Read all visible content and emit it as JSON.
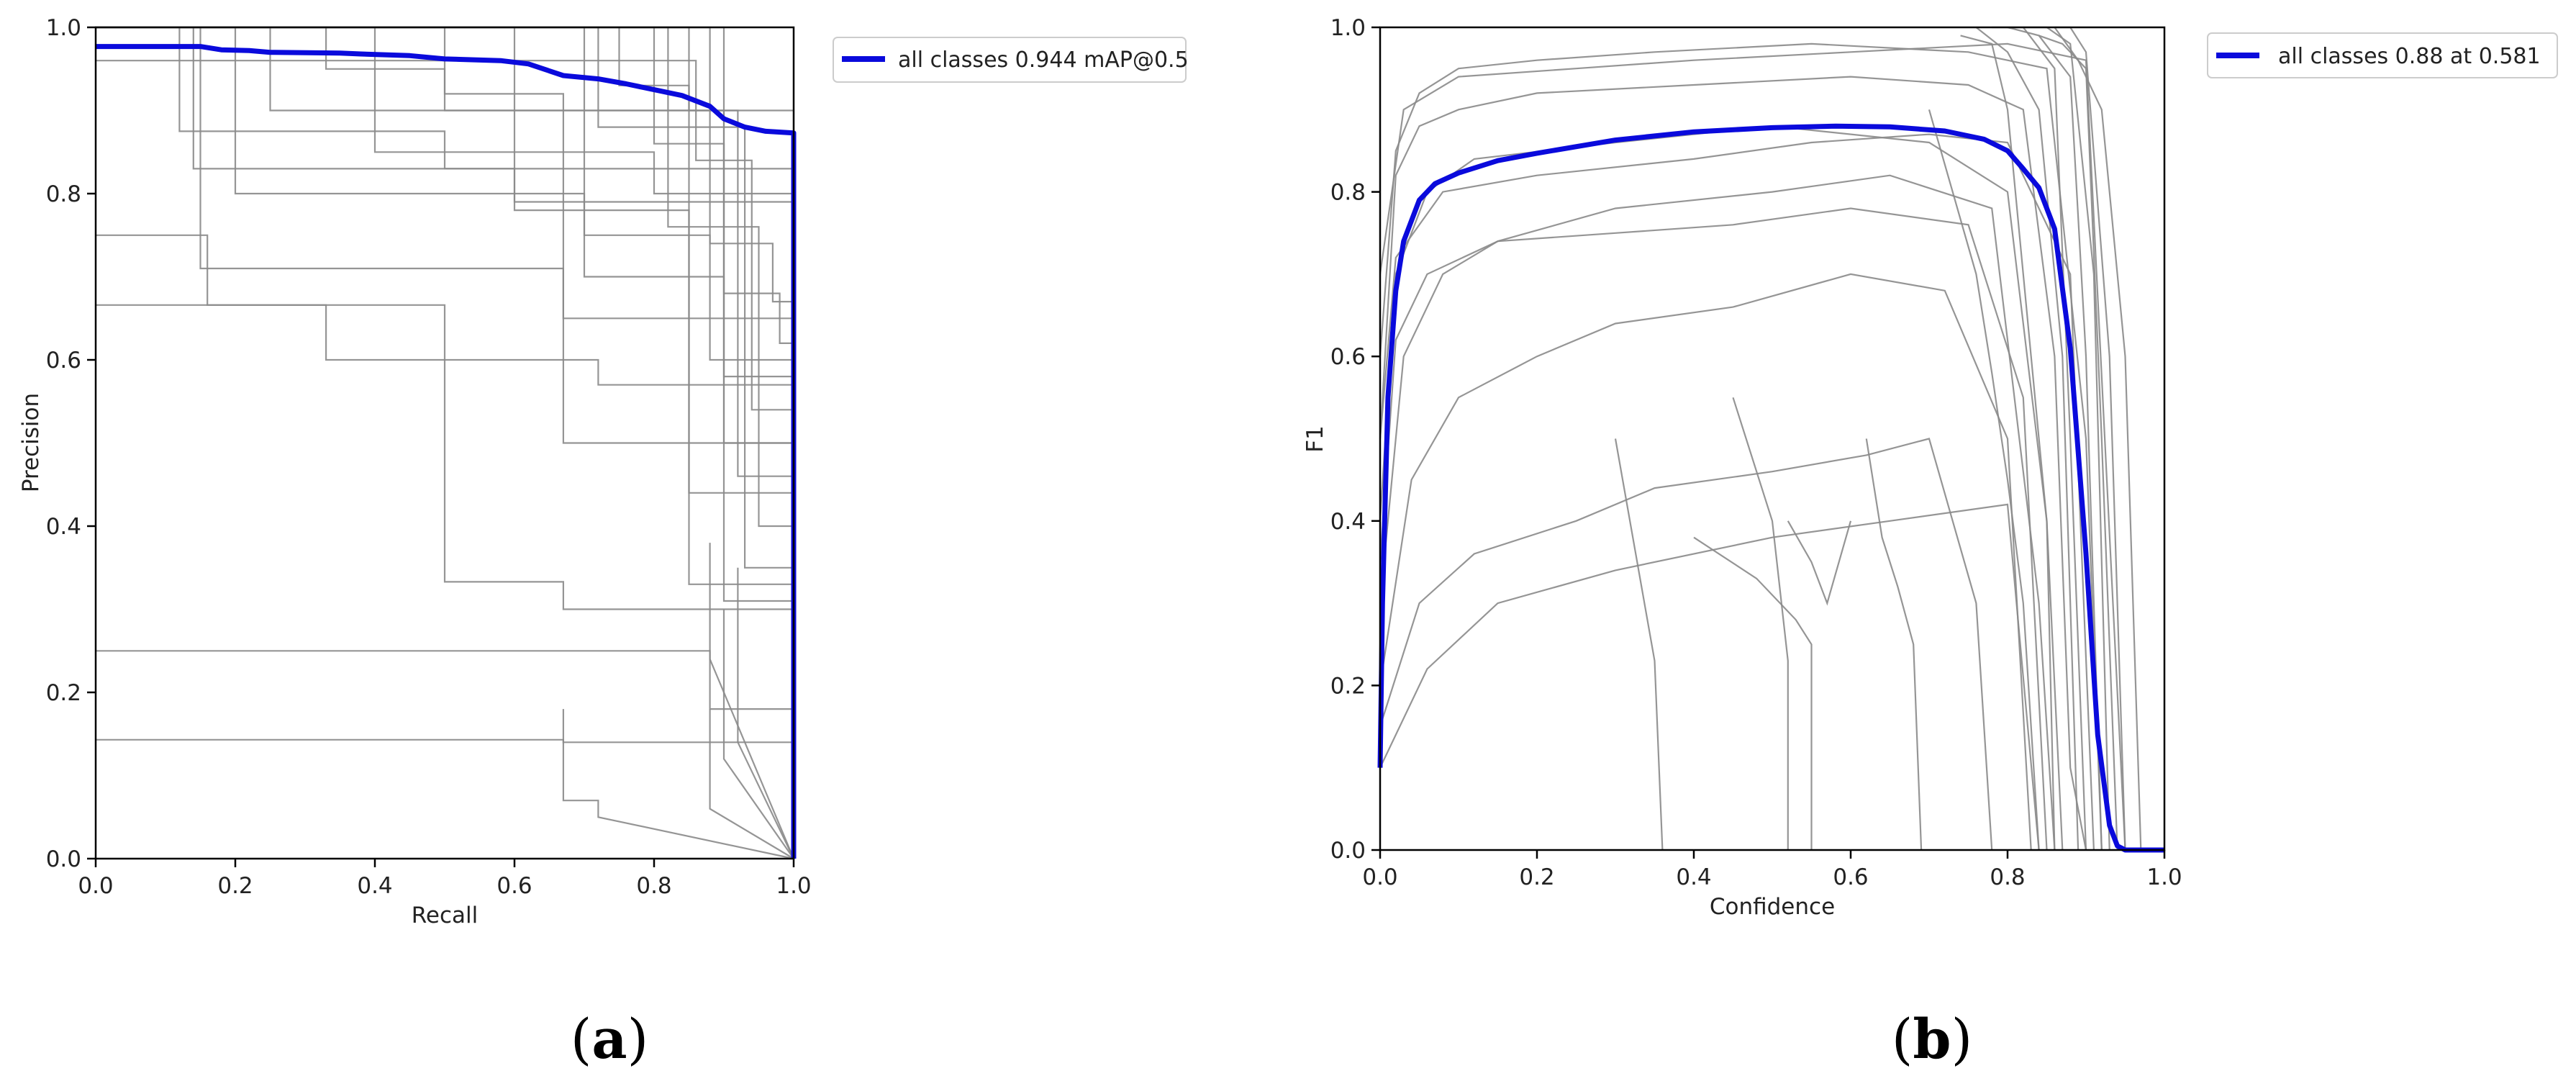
{
  "colors": {
    "all_classes": "#0a0adc",
    "per_class": "#8a8a8a",
    "axes": "#000000"
  },
  "chart_data": [
    {
      "type": "line",
      "panel_label": "a",
      "xlabel": "Recall",
      "ylabel": "Precision",
      "xlim": [
        0,
        1
      ],
      "ylim": [
        0,
        1
      ],
      "xticks": [
        "0.0",
        "0.2",
        "0.4",
        "0.6",
        "0.8",
        "1.0"
      ],
      "yticks": [
        "0.0",
        "0.2",
        "0.4",
        "0.6",
        "0.8",
        "1.0"
      ],
      "legend": {
        "position": "outside-top-right",
        "entries": [
          "all classes 0.944 mAP@0.5"
        ]
      },
      "grid": false,
      "series": [
        {
          "name": "all classes 0.944 mAP@0.5",
          "x": [
            0,
            0.15,
            0.18,
            0.22,
            0.25,
            0.35,
            0.38,
            0.45,
            0.5,
            0.58,
            0.62,
            0.67,
            0.72,
            0.76,
            0.8,
            0.84,
            0.88,
            0.9,
            0.93,
            0.96,
            1.0,
            1.0
          ],
          "y": [
            0.977,
            0.977,
            0.973,
            0.972,
            0.97,
            0.969,
            0.968,
            0.966,
            0.962,
            0.96,
            0.956,
            0.942,
            0.938,
            0.932,
            0.925,
            0.918,
            0.905,
            0.89,
            0.88,
            0.875,
            0.873,
            0.0
          ]
        }
      ],
      "background_series": [
        {
          "x": [
            0,
            0.12,
            0.12,
            0.5,
            0.5,
            1,
            1
          ],
          "y": [
            1,
            1,
            0.875,
            0.875,
            0.83,
            0.83,
            0
          ]
        },
        {
          "x": [
            0,
            0.14,
            0.14,
            0.6,
            0.6,
            1,
            1
          ],
          "y": [
            1,
            1,
            0.83,
            0.83,
            0.79,
            0.79,
            0
          ]
        },
        {
          "x": [
            0,
            0.15,
            0.15,
            0.67,
            0.67,
            1,
            1
          ],
          "y": [
            1,
            1,
            0.71,
            0.71,
            0.65,
            0.65,
            0
          ]
        },
        {
          "x": [
            0,
            0.16,
            0.16,
            0.33,
            0.33,
            0.72,
            0.72,
            1,
            1
          ],
          "y": [
            0.75,
            0.75,
            0.666,
            0.666,
            0.6,
            0.6,
            0.57,
            0.57,
            0
          ]
        },
        {
          "x": [
            0,
            0.2,
            0.2,
            0.7,
            0.7,
            0.88,
            0.88,
            1,
            1
          ],
          "y": [
            1,
            1,
            0.8,
            0.8,
            0.75,
            0.75,
            0.6,
            0.6,
            0
          ]
        },
        {
          "x": [
            0,
            0.25,
            0.25,
            0.9,
            0.9,
            1,
            1
          ],
          "y": [
            1,
            1,
            0.9,
            0.9,
            0.58,
            0.58,
            0
          ]
        },
        {
          "x": [
            0,
            0.33,
            0.33,
            0.5,
            0.5,
            1,
            1
          ],
          "y": [
            1,
            1,
            0.95,
            0.95,
            0.9,
            0.9,
            0
          ]
        },
        {
          "x": [
            0,
            0.4,
            0.4,
            0.8,
            0.8,
            1,
            1
          ],
          "y": [
            1,
            1,
            0.85,
            0.85,
            0.8,
            0.8,
            0
          ]
        },
        {
          "x": [
            0,
            0.5,
            0.5,
            0.67,
            0.67,
            1,
            1
          ],
          "y": [
            1,
            1,
            0.92,
            0.92,
            0.5,
            0.5,
            0
          ]
        },
        {
          "x": [
            0,
            0.6,
            0.6,
            0.85,
            0.85,
            1,
            1
          ],
          "y": [
            1,
            1,
            0.78,
            0.78,
            0.44,
            0.44,
            0
          ]
        },
        {
          "x": [
            0,
            0.5,
            0.5,
            0.67,
            0.67,
            1,
            1
          ],
          "y": [
            0.666,
            0.666,
            0.333,
            0.333,
            0.3,
            0.3,
            0
          ]
        },
        {
          "x": [
            0,
            0.67,
            0.67,
            0.88,
            0.88,
            1,
            1
          ],
          "y": [
            0.25,
            0.25,
            0.25,
            0.25,
            0.18,
            0.18,
            0
          ]
        },
        {
          "x": [
            0,
            0.67,
            0.67,
            1,
            1
          ],
          "y": [
            0.143,
            0.143,
            0.14,
            0.14,
            0
          ]
        },
        {
          "x": [
            0,
            0.7,
            0.7,
            0.9,
            0.9,
            1,
            1
          ],
          "y": [
            1,
            1,
            0.7,
            0.7,
            0.5,
            0.5,
            0
          ]
        },
        {
          "x": [
            0,
            0.72,
            0.72,
            0.93,
            0.93,
            1,
            1
          ],
          "y": [
            1,
            1,
            0.88,
            0.88,
            0.35,
            0.35,
            0
          ]
        },
        {
          "x": [
            0,
            0.75,
            0.75,
            0.85,
            0.85,
            1,
            1
          ],
          "y": [
            1,
            1,
            0.93,
            0.93,
            0.33,
            0.33,
            0
          ]
        },
        {
          "x": [
            0,
            0.8,
            0.8,
            0.9,
            0.9,
            1,
            1
          ],
          "y": [
            1,
            1,
            0.86,
            0.86,
            0.31,
            0.31,
            0
          ]
        },
        {
          "x": [
            0,
            0.82,
            0.82,
            0.95,
            0.95,
            1,
            1
          ],
          "y": [
            1,
            1,
            0.76,
            0.76,
            0.4,
            0.4,
            0
          ]
        },
        {
          "x": [
            0,
            0.85,
            0.85,
            0.92,
            0.92,
            1,
            1
          ],
          "y": [
            1,
            1,
            0.9,
            0.9,
            0.46,
            0.46,
            0
          ]
        },
        {
          "x": [
            0,
            0.86,
            0.86,
            0.94,
            0.94,
            1,
            1
          ],
          "y": [
            0.96,
            0.96,
            0.84,
            0.84,
            0.54,
            0.54,
            0
          ]
        },
        {
          "x": [
            0,
            0.88,
            0.88,
            0.97,
            0.97,
            1,
            1
          ],
          "y": [
            1,
            1,
            0.74,
            0.74,
            0.67,
            0.67,
            0
          ]
        },
        {
          "x": [
            0,
            0.9,
            0.9,
            0.98,
            0.98,
            1,
            1
          ],
          "y": [
            1,
            1,
            0.68,
            0.68,
            0.62,
            0.62,
            0
          ]
        },
        {
          "x": [
            0.67,
            0.67,
            0.72,
            0.72,
            1
          ],
          "y": [
            0.18,
            0.07,
            0.07,
            0.05,
            0
          ]
        },
        {
          "x": [
            0.88,
            0.88,
            1
          ],
          "y": [
            0.18,
            0.06,
            0
          ]
        },
        {
          "x": [
            0.88,
            0.88,
            1
          ],
          "y": [
            0.38,
            0.24,
            0
          ]
        },
        {
          "x": [
            0.9,
            0.9,
            1
          ],
          "y": [
            0.3,
            0.12,
            0
          ]
        },
        {
          "x": [
            0.92,
            0.92,
            1
          ],
          "y": [
            0.35,
            0.14,
            0
          ]
        }
      ]
    },
    {
      "type": "line",
      "panel_label": "b",
      "xlabel": "Confidence",
      "ylabel": "F1",
      "xlim": [
        0,
        1
      ],
      "ylim": [
        0,
        1
      ],
      "xticks": [
        "0.0",
        "0.2",
        "0.4",
        "0.6",
        "0.8",
        "1.0"
      ],
      "yticks": [
        "0.0",
        "0.2",
        "0.4",
        "0.6",
        "0.8",
        "1.0"
      ],
      "legend": {
        "position": "outside-top-right",
        "entries": [
          "all classes 0.88 at 0.581"
        ]
      },
      "grid": false,
      "series": [
        {
          "name": "all classes 0.88 at 0.581",
          "x": [
            0,
            0.003,
            0.01,
            0.02,
            0.03,
            0.05,
            0.07,
            0.1,
            0.15,
            0.2,
            0.3,
            0.4,
            0.5,
            0.581,
            0.65,
            0.72,
            0.77,
            0.8,
            0.82,
            0.84,
            0.86,
            0.88,
            0.9,
            0.915,
            0.93,
            0.94,
            0.95,
            1.0
          ],
          "y": [
            0.1,
            0.3,
            0.55,
            0.68,
            0.74,
            0.79,
            0.81,
            0.823,
            0.838,
            0.847,
            0.863,
            0.873,
            0.878,
            0.88,
            0.879,
            0.874,
            0.864,
            0.85,
            0.828,
            0.805,
            0.755,
            0.61,
            0.36,
            0.14,
            0.03,
            0.005,
            0.0,
            0.0
          ]
        }
      ],
      "background_series": [
        {
          "x": [
            0,
            0.02,
            0.05,
            0.1,
            0.2,
            0.4,
            0.6,
            0.75,
            0.82,
            0.86,
            0.88,
            0.9
          ],
          "y": [
            0.5,
            0.82,
            0.88,
            0.9,
            0.92,
            0.93,
            0.94,
            0.93,
            0.9,
            0.6,
            0.1,
            0
          ]
        },
        {
          "x": [
            0,
            0.02,
            0.06,
            0.12,
            0.3,
            0.5,
            0.7,
            0.8,
            0.85,
            0.87
          ],
          "y": [
            0.4,
            0.7,
            0.8,
            0.84,
            0.86,
            0.88,
            0.86,
            0.8,
            0.4,
            0
          ]
        },
        {
          "x": [
            0,
            0.03,
            0.08,
            0.15,
            0.3,
            0.5,
            0.65,
            0.78,
            0.84,
            0.86
          ],
          "y": [
            0.3,
            0.6,
            0.7,
            0.74,
            0.78,
            0.8,
            0.82,
            0.78,
            0.3,
            0
          ]
        },
        {
          "x": [
            0,
            0.02,
            0.05,
            0.1,
            0.2,
            0.35,
            0.55,
            0.75,
            0.85,
            0.9,
            0.92
          ],
          "y": [
            0.6,
            0.85,
            0.92,
            0.95,
            0.96,
            0.97,
            0.98,
            0.97,
            0.95,
            0.5,
            0
          ]
        },
        {
          "x": [
            0,
            0.04,
            0.1,
            0.2,
            0.3,
            0.45,
            0.6,
            0.72,
            0.8,
            0.83
          ],
          "y": [
            0.2,
            0.45,
            0.55,
            0.6,
            0.64,
            0.66,
            0.7,
            0.68,
            0.5,
            0
          ]
        },
        {
          "x": [
            0,
            0.05,
            0.12,
            0.25,
            0.35,
            0.5,
            0.62,
            0.7,
            0.76,
            0.78
          ],
          "y": [
            0.15,
            0.3,
            0.36,
            0.4,
            0.44,
            0.46,
            0.48,
            0.5,
            0.3,
            0
          ]
        },
        {
          "x": [
            0,
            0.02,
            0.08,
            0.2,
            0.4,
            0.55,
            0.7,
            0.8,
            0.88,
            0.91
          ],
          "y": [
            0.5,
            0.72,
            0.8,
            0.82,
            0.84,
            0.86,
            0.87,
            0.86,
            0.7,
            0
          ]
        },
        {
          "x": [
            0,
            0.03,
            0.1,
            0.25,
            0.4,
            0.6,
            0.8,
            0.9,
            0.95
          ],
          "y": [
            0.7,
            0.9,
            0.94,
            0.95,
            0.96,
            0.97,
            0.98,
            0.96,
            0
          ]
        },
        {
          "x": [
            0,
            0.06,
            0.15,
            0.3,
            0.5,
            0.65,
            0.8,
            0.84
          ],
          "y": [
            0.1,
            0.22,
            0.3,
            0.34,
            0.38,
            0.4,
            0.42,
            0
          ]
        },
        {
          "x": [
            0,
            0.02,
            0.06,
            0.15,
            0.3,
            0.45,
            0.6,
            0.75,
            0.82,
            0.85
          ],
          "y": [
            0.35,
            0.62,
            0.7,
            0.74,
            0.75,
            0.76,
            0.78,
            0.76,
            0.55,
            0
          ]
        },
        {
          "x": [
            0.3,
            0.35,
            0.36
          ],
          "y": [
            0.5,
            0.23,
            0
          ]
        },
        {
          "x": [
            0.45,
            0.5,
            0.52,
            0.52
          ],
          "y": [
            0.55,
            0.4,
            0.23,
            0
          ]
        },
        {
          "x": [
            0.52,
            0.55,
            0.57,
            0.6
          ],
          "y": [
            0.4,
            0.35,
            0.3,
            0.4
          ]
        },
        {
          "x": [
            0.62,
            0.64,
            0.66,
            0.68,
            0.69
          ],
          "y": [
            0.5,
            0.38,
            0.32,
            0.25,
            0
          ]
        },
        {
          "x": [
            0.4,
            0.48,
            0.53,
            0.55,
            0.55
          ],
          "y": [
            0.38,
            0.33,
            0.28,
            0.25,
            0
          ]
        },
        {
          "x": [
            0.7,
            0.73,
            0.76,
            0.78,
            0.8,
            0.82,
            0.84
          ],
          "y": [
            0.9,
            0.8,
            0.7,
            0.58,
            0.45,
            0.3,
            0
          ]
        },
        {
          "x": [
            0.74,
            0.78,
            0.8,
            0.82,
            0.85,
            0.86
          ],
          "y": [
            0.99,
            0.98,
            0.9,
            0.7,
            0.4,
            0
          ]
        },
        {
          "x": [
            0.76,
            0.8,
            0.84,
            0.87,
            0.89
          ],
          "y": [
            1,
            0.97,
            0.9,
            0.6,
            0
          ]
        },
        {
          "x": [
            0.78,
            0.82,
            0.86,
            0.88,
            0.9
          ],
          "y": [
            1,
            1,
            0.95,
            0.5,
            0
          ]
        },
        {
          "x": [
            0.8,
            0.84,
            0.88,
            0.9,
            0.92
          ],
          "y": [
            1,
            0.99,
            0.94,
            0.6,
            0
          ]
        },
        {
          "x": [
            0.82,
            0.85,
            0.88,
            0.91,
            0.93
          ],
          "y": [
            1,
            1,
            0.98,
            0.7,
            0
          ]
        },
        {
          "x": [
            0.84,
            0.87,
            0.9,
            0.92,
            0.94
          ],
          "y": [
            0.99,
            0.98,
            0.95,
            0.5,
            0
          ]
        },
        {
          "x": [
            0.86,
            0.88,
            0.9,
            0.93,
            0.95
          ],
          "y": [
            1,
            1,
            0.97,
            0.6,
            0
          ]
        },
        {
          "x": [
            0.86,
            0.89,
            0.92,
            0.95,
            0.97
          ],
          "y": [
            1,
            0.96,
            0.9,
            0.6,
            0
          ]
        }
      ]
    }
  ]
}
